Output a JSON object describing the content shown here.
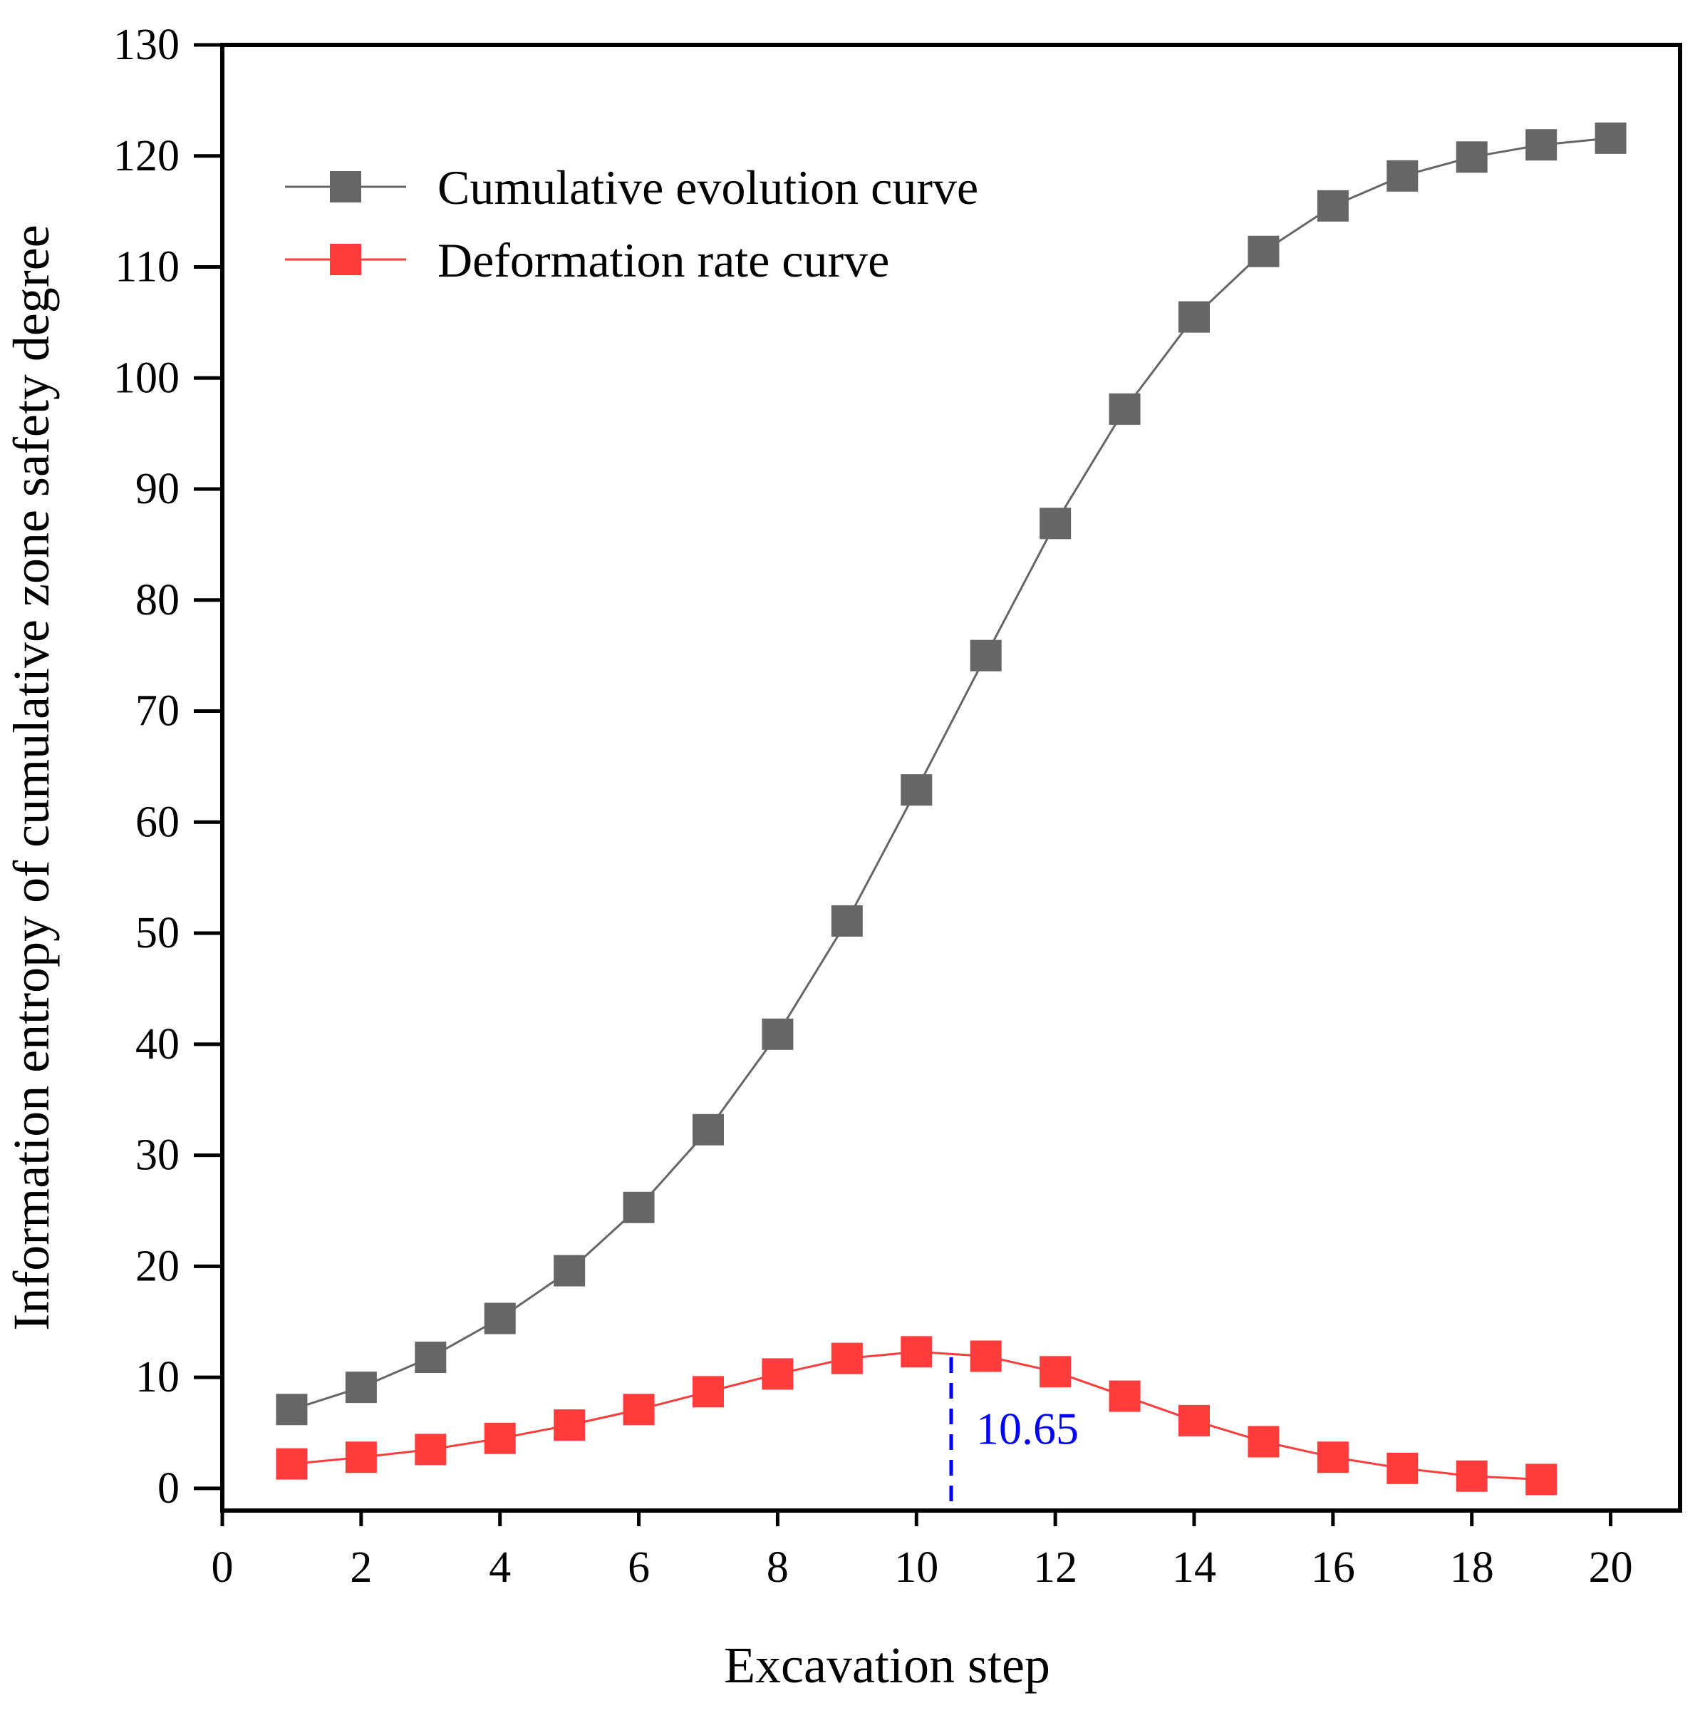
{
  "chart_data": {
    "type": "line",
    "title": "",
    "xlabel": "Excavation step",
    "ylabel": "Information entropy of cumulative zone safety degree",
    "xlim": [
      0,
      21
    ],
    "ylim": [
      -2,
      130
    ],
    "xticks": [
      0,
      2,
      4,
      6,
      8,
      10,
      12,
      14,
      16,
      18,
      20
    ],
    "yticks": [
      0,
      10,
      20,
      30,
      40,
      50,
      60,
      70,
      80,
      90,
      100,
      110,
      120,
      130
    ],
    "grid": false,
    "legend_position": "top-left",
    "series": [
      {
        "name": "Cumulative evolution curve",
        "color": "#666666",
        "marker": "square",
        "x": [
          1,
          2,
          3,
          4,
          5,
          6,
          7,
          8,
          9,
          10,
          11,
          12,
          13,
          14,
          15,
          16,
          17,
          18,
          19,
          20
        ],
        "values": [
          7.1,
          9.1,
          11.8,
          15.3,
          19.6,
          25.3,
          32.3,
          40.9,
          51.1,
          62.9,
          75.0,
          86.9,
          97.2,
          105.5,
          111.4,
          115.5,
          118.2,
          119.9,
          121.0,
          121.6
        ]
      },
      {
        "name": "Deformation rate curve",
        "color": "#ff3c3c",
        "marker": "square",
        "x": [
          1,
          2,
          3,
          4,
          5,
          6,
          7,
          8,
          9,
          10,
          11,
          12,
          13,
          14,
          15,
          16,
          17,
          18,
          19
        ],
        "values": [
          2.2,
          2.8,
          3.5,
          4.5,
          5.7,
          7.1,
          8.7,
          10.3,
          11.7,
          12.3,
          11.9,
          10.5,
          8.3,
          6.1,
          4.2,
          2.8,
          1.8,
          1.1,
          0.8
        ]
      }
    ],
    "annotations": [
      {
        "type": "vline",
        "x": 10.5,
        "y_from": -2,
        "y_to": 11.8,
        "color": "#0000ff",
        "style": "dashed",
        "label": "10.65"
      }
    ]
  }
}
